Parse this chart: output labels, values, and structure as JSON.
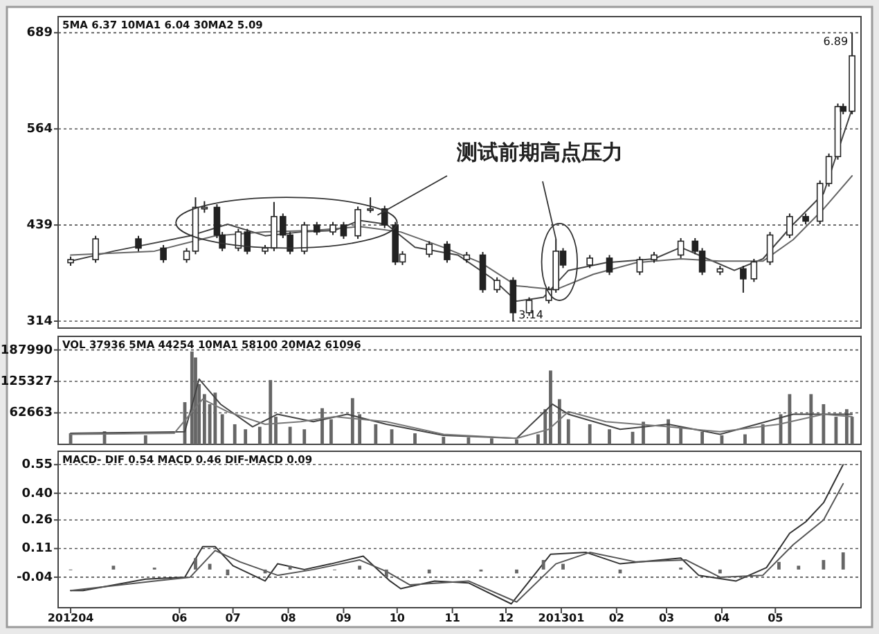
{
  "chart_data": [
    {
      "type": "candlestick",
      "color": "#222222",
      "x": [
        "2012-04-01",
        "2012-04-15",
        "2012-05-09",
        "2012-05-23",
        "2012-06-05",
        "2012-06-10",
        "2012-06-15",
        "2012-06-22",
        "2012-06-25",
        "2012-07-04",
        "2012-07-09",
        "2012-07-19",
        "2012-07-24",
        "2012-07-29",
        "2012-08-02",
        "2012-08-10",
        "2012-08-17",
        "2012-08-26",
        "2012-09-01",
        "2012-09-09",
        "2012-09-16",
        "2012-09-24",
        "2012-09-30",
        "2012-10-04",
        "2012-10-19",
        "2012-10-29",
        "2012-11-09",
        "2012-11-18",
        "2012-11-26",
        "2012-12-05",
        "2012-12-14",
        "2012-12-25",
        "2012-12-29",
        "2013-01-02",
        "2013-01-17",
        "2013-01-28",
        "2013-02-14",
        "2013-02-22",
        "2013-03-09",
        "2013-03-17",
        "2013-03-21",
        "2013-03-31",
        "2013-04-13",
        "2013-04-19",
        "2013-04-28",
        "2013-05-09",
        "2013-05-18",
        "2013-05-26",
        "2013-05-31",
        "2013-06-05",
        "2013-06-08",
        "2013-06-13"
      ],
      "ohlc": [
        [
          390,
          398,
          386,
          394
        ],
        [
          394,
          425,
          390,
          421
        ],
        [
          421,
          425,
          405,
          409
        ],
        [
          409,
          413,
          390,
          394
        ],
        [
          394,
          409,
          390,
          405
        ],
        [
          405,
          475,
          401,
          462
        ],
        [
          460,
          470,
          455,
          462
        ],
        [
          462,
          466,
          422,
          426
        ],
        [
          426,
          430,
          405,
          409
        ],
        [
          409,
          434,
          405,
          430
        ],
        [
          430,
          434,
          401,
          405
        ],
        [
          405,
          413,
          401,
          409
        ],
        [
          409,
          469,
          405,
          450
        ],
        [
          450,
          454,
          422,
          426
        ],
        [
          426,
          430,
          401,
          405
        ],
        [
          405,
          443,
          401,
          439
        ],
        [
          439,
          443,
          426,
          430
        ],
        [
          430,
          443,
          426,
          439
        ],
        [
          439,
          443,
          421,
          425
        ],
        [
          425,
          463,
          421,
          459
        ],
        [
          459,
          475,
          455,
          460
        ],
        [
          460,
          464,
          435,
          439
        ],
        [
          439,
          443,
          387,
          391
        ],
        [
          391,
          405,
          387,
          401
        ],
        [
          401,
          418,
          397,
          414
        ],
        [
          414,
          418,
          390,
          394
        ],
        [
          394,
          404,
          390,
          400
        ],
        [
          400,
          404,
          351,
          355
        ],
        [
          355,
          371,
          351,
          367
        ],
        [
          367,
          371,
          314,
          325
        ],
        [
          325,
          345,
          321,
          341
        ],
        [
          341,
          359,
          337,
          355
        ],
        [
          355,
          421,
          351,
          405
        ],
        [
          405,
          409,
          383,
          387
        ],
        [
          387,
          400,
          383,
          396
        ],
        [
          396,
          400,
          374,
          378
        ],
        [
          378,
          398,
          374,
          394
        ],
        [
          394,
          404,
          390,
          400
        ],
        [
          400,
          422,
          396,
          418
        ],
        [
          418,
          422,
          401,
          405
        ],
        [
          405,
          409,
          374,
          378
        ],
        [
          378,
          386,
          374,
          382
        ],
        [
          382,
          386,
          351,
          369
        ],
        [
          369,
          395,
          365,
          391
        ],
        [
          391,
          430,
          387,
          426
        ],
        [
          426,
          454,
          422,
          450
        ],
        [
          450,
          454,
          440,
          444
        ],
        [
          444,
          497,
          440,
          493
        ],
        [
          493,
          532,
          489,
          528
        ],
        [
          528,
          597,
          524,
          593
        ],
        [
          593,
          597,
          583,
          587
        ],
        [
          587,
          689,
          583,
          659
        ]
      ],
      "series": [
        {
          "type": "line",
          "color": "#444444",
          "x": [
            "2012-04-01",
            "2012-04-25",
            "2012-06-07",
            "2012-06-28",
            "2012-07-19",
            "2012-08-08",
            "2012-08-27",
            "2012-09-10",
            "2012-09-25",
            "2012-10-11",
            "2012-11-04",
            "2012-11-23",
            "2012-12-07",
            "2012-12-22",
            "2013-01-05",
            "2013-01-26",
            "2013-02-22",
            "2013-03-09",
            "2013-03-24",
            "2013-04-08",
            "2013-04-24",
            "2013-05-11",
            "2013-05-28",
            "2013-06-13"
          ],
          "values": [
            392,
            405,
            425,
            440,
            425,
            430,
            432,
            445,
            440,
            410,
            400,
            370,
            340,
            345,
            380,
            390,
            395,
            410,
            395,
            380,
            395,
            440,
            480,
            590
          ]
        },
        {
          "type": "line",
          "color": "#666666",
          "x": [
            "2012-04-01",
            "2012-05-18",
            "2012-06-21",
            "2012-07-19",
            "2012-08-15",
            "2012-09-10",
            "2012-10-03",
            "2012-10-27",
            "2012-11-17",
            "2012-12-07",
            "2012-12-29",
            "2013-01-19",
            "2013-02-12",
            "2013-03-09",
            "2013-03-31",
            "2013-04-24",
            "2013-05-11",
            "2013-05-28",
            "2013-06-13"
          ],
          "values": [
            400,
            405,
            425,
            430,
            432,
            437,
            430,
            410,
            390,
            360,
            355,
            375,
            390,
            395,
            392,
            392,
            420,
            460,
            503
          ]
        }
      ],
      "xlim": [
        "2012-03-25",
        "2013-06-18"
      ],
      "ylim": [
        305,
        710
      ],
      "yticks": [
        314,
        439,
        564,
        689
      ],
      "grid": "y",
      "tick_labels": "y",
      "annotations": [
        "5MA 6.37  10MA1 6.04  30MA2 5.09",
        {
          "text": "测试前期高点压力",
          "x": "2012-12-29",
          "y": 421
        },
        {
          "text": "3.14",
          "x": "2012-12-05",
          "y": 314
        },
        {
          "text": "6.89",
          "x": "2013-06-13",
          "y": 689
        }
      ]
    },
    {
      "type": "bar",
      "color": "#666666",
      "x": [
        "2012-04-01",
        "2012-04-20",
        "2012-05-13",
        "2012-06-04",
        "2012-06-08",
        "2012-06-10",
        "2012-06-12",
        "2012-06-15",
        "2012-06-18",
        "2012-06-21",
        "2012-06-25",
        "2012-07-02",
        "2012-07-08",
        "2012-07-16",
        "2012-07-22",
        "2012-07-25",
        "2012-08-02",
        "2012-08-10",
        "2012-08-20",
        "2012-08-25",
        "2012-09-06",
        "2012-09-10",
        "2012-09-19",
        "2012-09-28",
        "2012-10-11",
        "2012-10-27",
        "2012-11-10",
        "2012-11-23",
        "2012-12-07",
        "2012-12-19",
        "2012-12-23",
        "2012-12-26",
        "2012-12-31",
        "2013-01-05",
        "2013-01-17",
        "2013-01-28",
        "2013-02-10",
        "2013-02-16",
        "2013-03-02",
        "2013-03-09",
        "2013-03-21",
        "2013-04-01",
        "2013-04-14",
        "2013-04-24",
        "2013-05-04",
        "2013-05-09",
        "2013-05-21",
        "2013-05-28",
        "2013-06-04",
        "2013-06-10",
        "2013-06-13"
      ],
      "values": [
        22000,
        26000,
        18000,
        84000,
        185000,
        173000,
        120000,
        100000,
        80000,
        103000,
        60000,
        40000,
        30000,
        35000,
        128000,
        55000,
        35000,
        30000,
        72000,
        50000,
        92000,
        60000,
        40000,
        30000,
        22000,
        15000,
        14000,
        12000,
        10000,
        20000,
        70000,
        147000,
        90000,
        50000,
        40000,
        30000,
        25000,
        45000,
        50000,
        35000,
        25000,
        18000,
        20000,
        40000,
        60000,
        100000,
        100000,
        80000,
        55000,
        70000,
        55000
      ],
      "series": [
        {
          "type": "line",
          "color": "#444444",
          "x": [
            "2012-04-01",
            "2012-06-04",
            "2012-06-12",
            "2012-06-24",
            "2012-07-12",
            "2012-07-26",
            "2012-08-15",
            "2012-09-03",
            "2012-09-25",
            "2012-10-27",
            "2012-12-07",
            "2012-12-27",
            "2013-01-05",
            "2013-02-03",
            "2013-03-02",
            "2013-03-31",
            "2013-05-11",
            "2013-06-13"
          ],
          "values": [
            22000,
            25000,
            130000,
            80000,
            35000,
            60000,
            45000,
            60000,
            40000,
            18000,
            12000,
            80000,
            60000,
            30000,
            40000,
            20000,
            60000,
            60000
          ]
        },
        {
          "type": "line",
          "color": "#777777",
          "x": [
            "2012-04-01",
            "2012-05-29",
            "2012-06-14",
            "2012-06-28",
            "2012-07-19",
            "2012-08-08",
            "2012-08-27",
            "2012-09-25",
            "2012-10-27",
            "2012-12-07",
            "2012-12-25",
            "2013-01-05",
            "2013-01-26",
            "2013-03-02",
            "2013-03-31",
            "2013-05-03",
            "2013-05-28",
            "2013-06-13"
          ],
          "values": [
            20000,
            22000,
            90000,
            65000,
            40000,
            45000,
            55000,
            45000,
            20000,
            12000,
            30000,
            65000,
            45000,
            35000,
            25000,
            40000,
            60000,
            55000
          ]
        }
      ],
      "xlim": [
        "2012-03-25",
        "2013-06-18"
      ],
      "ylim": [
        0,
        215000
      ],
      "yticks": [
        62663,
        125327,
        187990
      ],
      "grid": "y",
      "tick_labels": "y",
      "annotations": [
        "VOL 37936  5MA 44254  10MA1 58100  20MA2 61096"
      ]
    },
    {
      "type": "line",
      "series": [
        {
          "color": "#333333",
          "x": [
            "2012-04-01",
            "2012-04-08",
            "2012-05-13",
            "2012-06-04",
            "2012-06-14",
            "2012-06-21",
            "2012-07-01",
            "2012-07-19",
            "2012-07-26",
            "2012-08-10",
            "2012-08-25",
            "2012-09-12",
            "2012-09-27",
            "2012-10-03",
            "2012-10-22",
            "2012-11-10",
            "2012-12-04",
            "2012-12-26",
            "2013-01-15",
            "2013-02-03",
            "2013-03-09",
            "2013-03-19",
            "2013-04-09",
            "2013-04-26",
            "2013-05-09",
            "2013-05-18",
            "2013-05-28",
            "2013-06-08"
          ],
          "values": [
            -0.11,
            -0.11,
            -0.05,
            -0.04,
            0.12,
            0.12,
            0.02,
            -0.06,
            0.03,
            0.0,
            0.03,
            0.07,
            -0.06,
            -0.1,
            -0.06,
            -0.07,
            -0.18,
            0.08,
            0.09,
            0.03,
            0.06,
            -0.03,
            -0.06,
            0.01,
            0.19,
            0.25,
            0.35,
            0.55
          ]
        },
        {
          "color": "#555555",
          "x": [
            "2012-04-01",
            "2012-05-18",
            "2012-06-07",
            "2012-06-21",
            "2012-07-05",
            "2012-07-26",
            "2012-08-15",
            "2012-09-10",
            "2012-09-25",
            "2012-10-08",
            "2012-11-10",
            "2012-12-07",
            "2012-12-29",
            "2013-01-17",
            "2013-02-12",
            "2013-03-12",
            "2013-03-31",
            "2013-04-24",
            "2013-05-11",
            "2013-05-28",
            "2013-06-08"
          ],
          "values": [
            -0.11,
            -0.06,
            -0.04,
            0.1,
            0.04,
            -0.03,
            0.0,
            0.05,
            -0.01,
            -0.08,
            -0.06,
            -0.17,
            0.03,
            0.09,
            0.04,
            0.05,
            -0.04,
            -0.03,
            0.13,
            0.26,
            0.45
          ]
        },
        {
          "type": "bar",
          "color": "#666666",
          "x": [
            "2012-04-01",
            "2012-04-25",
            "2012-05-18",
            "2012-06-10",
            "2012-06-18",
            "2012-06-28",
            "2012-07-19",
            "2012-08-02",
            "2012-08-27",
            "2012-09-10",
            "2012-09-25",
            "2012-10-19",
            "2012-11-17",
            "2012-12-07",
            "2012-12-22",
            "2013-01-02",
            "2013-02-03",
            "2013-03-09",
            "2013-03-31",
            "2013-05-03",
            "2013-05-14",
            "2013-05-28",
            "2013-06-08"
          ],
          "values": [
            0.0,
            0.02,
            0.01,
            0.06,
            0.03,
            -0.03,
            -0.02,
            0.02,
            0.0,
            0.02,
            -0.04,
            -0.02,
            -0.01,
            -0.02,
            0.05,
            0.03,
            -0.02,
            0.01,
            -0.02,
            0.04,
            0.02,
            0.05,
            0.09
          ]
        }
      ],
      "xlim": [
        "2012-03-25",
        "2013-06-18"
      ],
      "ylim": [
        -0.2,
        0.62
      ],
      "yticks": [
        -0.04,
        0.11,
        0.26,
        {
          "value": 0.4,
          "label": "0.40"
        },
        0.55
      ],
      "grid": "y",
      "xticks": [
        {
          "value": "2012-04",
          "label": "201204"
        },
        {
          "value": "2012-06",
          "label": "06"
        },
        {
          "value": "2012-07",
          "label": "07"
        },
        {
          "value": "2012-08",
          "label": "08"
        },
        {
          "value": "2012-09",
          "label": "09"
        },
        {
          "value": "2012-10",
          "label": "10"
        },
        {
          "value": "2012-11",
          "label": "11"
        },
        {
          "value": "2012-12",
          "label": "12"
        },
        {
          "value": "2013-01",
          "label": "201301"
        },
        {
          "value": "2013-02",
          "label": "02"
        },
        {
          "value": "2013-03",
          "label": "03"
        },
        {
          "value": "2013-04",
          "label": "04"
        },
        {
          "value": "2013-05",
          "label": "05"
        }
      ],
      "annotations": [
        "MACD- DIF 0.54  MACD 0.46  DIF-MACD 0.09"
      ]
    }
  ]
}
